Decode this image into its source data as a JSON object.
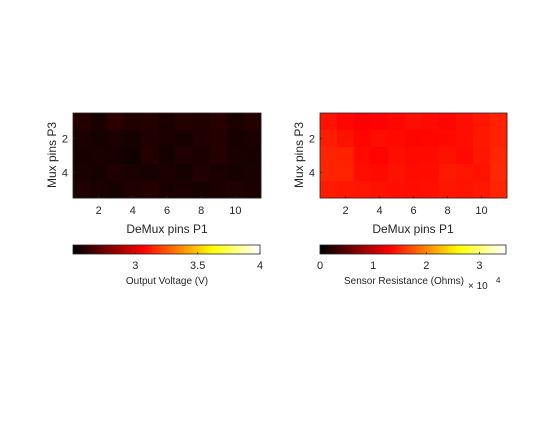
{
  "chart_data": [
    {
      "type": "heatmap",
      "xlabel": "DeMux pins P1",
      "ylabel": "Mux pins P3",
      "x_ticks": [
        "2",
        "4",
        "6",
        "8",
        "10"
      ],
      "y_ticks": [
        "2",
        "4"
      ],
      "x_range": [
        1,
        11
      ],
      "y_range": [
        1,
        5
      ],
      "colormap": "hot",
      "values": [
        [
          2.58,
          2.56,
          2.6,
          2.57,
          2.58,
          2.56,
          2.58,
          2.57,
          2.59,
          2.56,
          2.58
        ],
        [
          2.56,
          2.55,
          2.56,
          2.55,
          2.57,
          2.56,
          2.55,
          2.57,
          2.58,
          2.55,
          2.56
        ],
        [
          2.55,
          2.56,
          2.55,
          2.54,
          2.58,
          2.55,
          2.57,
          2.56,
          2.58,
          2.56,
          2.55
        ],
        [
          2.56,
          2.55,
          2.57,
          2.56,
          2.55,
          2.56,
          2.55,
          2.57,
          2.56,
          2.55,
          2.56
        ],
        [
          2.57,
          2.56,
          2.55,
          2.57,
          2.58,
          2.56,
          2.56,
          2.55,
          2.56,
          2.57,
          2.56
        ]
      ],
      "colorbar": {
        "label": "Output Voltage (V)",
        "ticks": [
          "3",
          "3.5",
          "4"
        ],
        "tick_values": [
          3,
          3.5,
          4
        ],
        "range": [
          2.5,
          4.0
        ]
      }
    },
    {
      "type": "heatmap",
      "xlabel": "DeMux pins P1",
      "ylabel": "Mux pins P3",
      "x_ticks": [
        "2",
        "4",
        "6",
        "8",
        "10"
      ],
      "y_ticks": [
        "2",
        "4"
      ],
      "x_range": [
        1,
        11
      ],
      "y_range": [
        1,
        5
      ],
      "colormap": "hot",
      "values": [
        [
          14000,
          13500,
          13000,
          13200,
          13500,
          13800,
          13600,
          13400,
          13800,
          14200,
          14800
        ],
        [
          14600,
          14000,
          13400,
          13800,
          13600,
          13400,
          13500,
          13600,
          13800,
          14300,
          14900
        ],
        [
          15000,
          14800,
          13600,
          13300,
          13800,
          13600,
          13700,
          14000,
          13600,
          14200,
          15100
        ],
        [
          15000,
          14900,
          13800,
          13600,
          14000,
          13700,
          13800,
          14400,
          14200,
          14100,
          15200
        ],
        [
          14500,
          14300,
          14200,
          14000,
          13900,
          13800,
          13900,
          14200,
          14100,
          14300,
          15000
        ]
      ],
      "colorbar": {
        "label": "Sensor Resistance (Ohms)",
        "ticks": [
          "0",
          "1",
          "2",
          "3"
        ],
        "tick_values": [
          0,
          1,
          2,
          3
        ],
        "range": [
          0,
          3.5
        ],
        "exponent_base": "× 10",
        "exponent_power": "4"
      }
    }
  ]
}
